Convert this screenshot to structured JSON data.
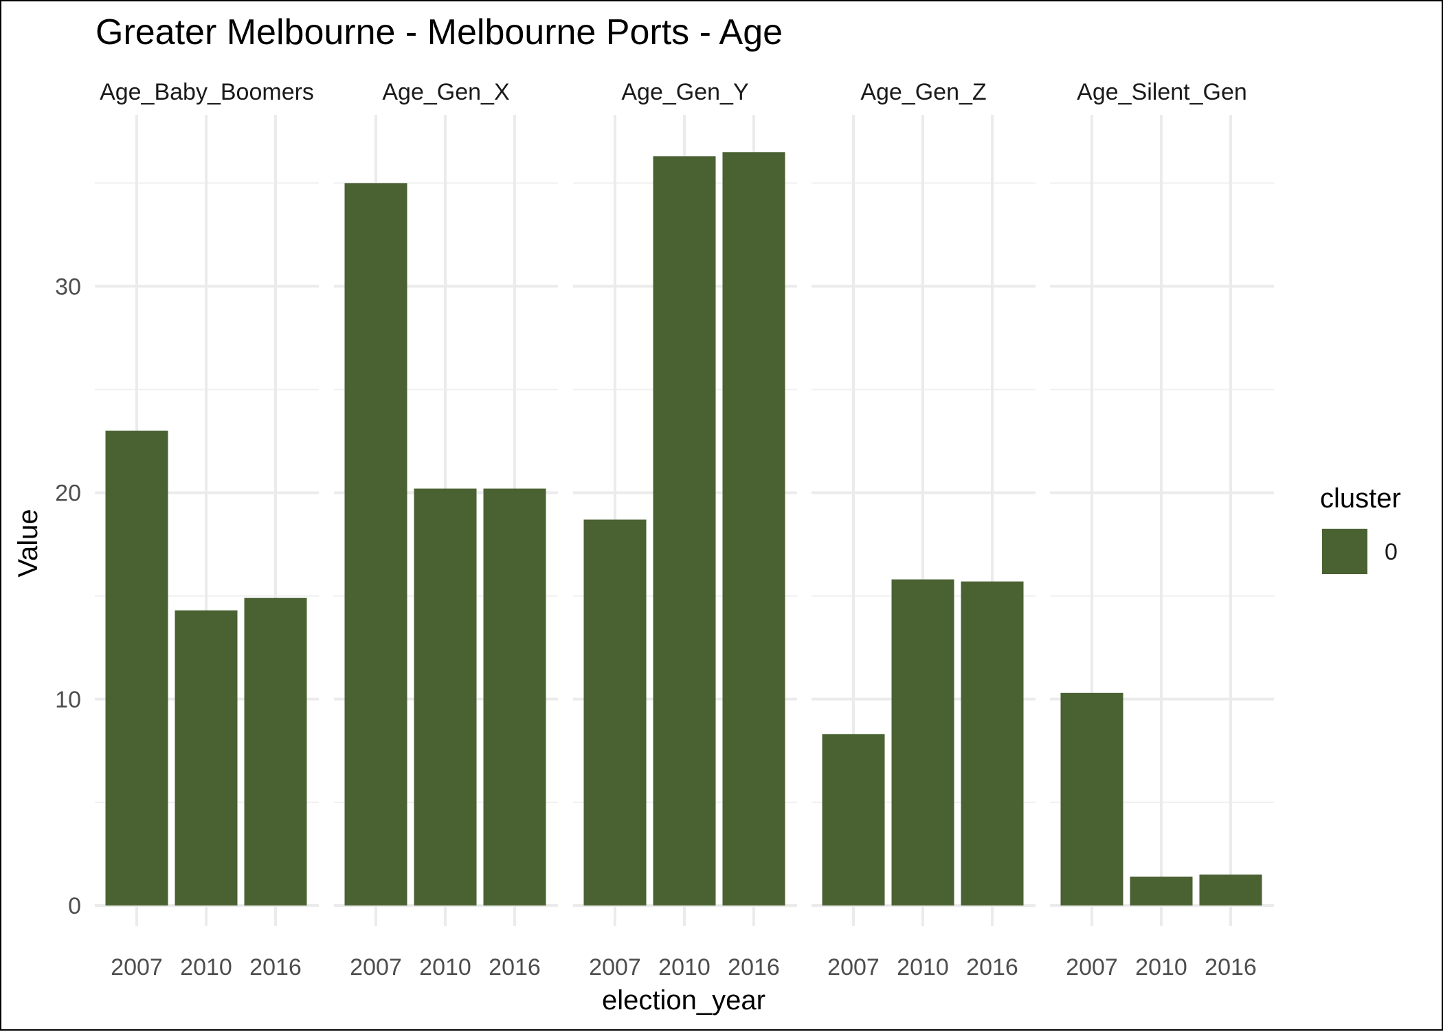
{
  "chart_data": {
    "type": "bar",
    "title": "Greater Melbourne - Melbourne Ports - Age",
    "xlabel": "election_year",
    "ylabel": "Value",
    "ylim": [
      0,
      37.5
    ],
    "yticks": [
      0,
      10,
      20,
      30
    ],
    "categories": [
      "2007",
      "2010",
      "2016"
    ],
    "facets": [
      {
        "name": "Age_Baby_Boomers",
        "values": [
          23.0,
          14.3,
          14.9
        ]
      },
      {
        "name": "Age_Gen_X",
        "values": [
          35.0,
          20.2,
          20.2
        ]
      },
      {
        "name": "Age_Gen_Y",
        "values": [
          18.7,
          36.3,
          36.5
        ]
      },
      {
        "name": "Age_Gen_Z",
        "values": [
          8.3,
          15.8,
          15.7
        ]
      },
      {
        "name": "Age_Silent_Gen",
        "values": [
          10.3,
          1.4,
          1.5
        ]
      }
    ],
    "legend": {
      "title": "cluster",
      "items": [
        {
          "label": "0",
          "color": "#4a6132"
        }
      ],
      "position": "right"
    },
    "bar_color": "#4a6132",
    "grid": true
  }
}
